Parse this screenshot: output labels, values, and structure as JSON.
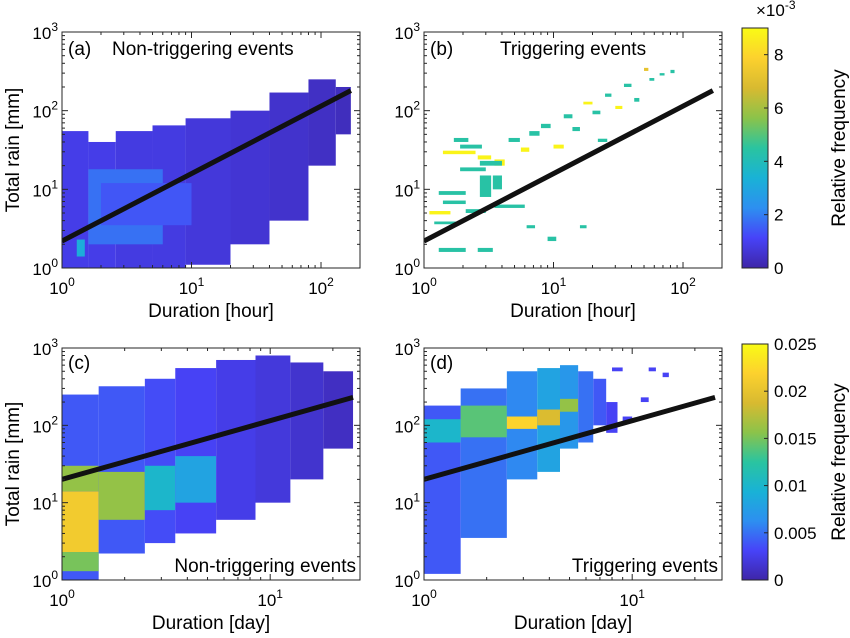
{
  "chart_data": [
    {
      "type": "heatmap",
      "panel_label": "(a)",
      "title": "Non-triggering events",
      "xlabel": "Duration [hour]",
      "ylabel": "Total rain [mm]",
      "xscale": "log",
      "yscale": "log",
      "xlim": [
        1,
        200
      ],
      "ylim": [
        1,
        1000
      ],
      "xticks": [
        {
          "label": "10",
          "exp": "0"
        },
        {
          "label": "10",
          "exp": "1"
        },
        {
          "label": "10",
          "exp": "2"
        }
      ],
      "yticks": [
        {
          "label": "10",
          "exp": "0"
        },
        {
          "label": "10",
          "exp": "1"
        },
        {
          "label": "10",
          "exp": "2"
        },
        {
          "label": "10",
          "exp": "3"
        }
      ],
      "colorbar": "top",
      "fit_line": {
        "x": [
          1,
          170
        ],
        "y": [
          2.2,
          180
        ]
      },
      "cells": [
        {
          "x": [
            1,
            1.6
          ],
          "y": [
            1,
            55
          ],
          "v": 0.0009
        },
        {
          "x": [
            1.3,
            1.5
          ],
          "y": [
            1.4,
            2.3
          ],
          "v": 0.0032
        },
        {
          "x": [
            1.6,
            2.6
          ],
          "y": [
            1,
            40
          ],
          "v": 0.0009
        },
        {
          "x": [
            2.6,
            5
          ],
          "y": [
            1,
            55
          ],
          "v": 0.0008
        },
        {
          "x": [
            5,
            9
          ],
          "y": [
            1,
            65
          ],
          "v": 0.0008
        },
        {
          "x": [
            9,
            20
          ],
          "y": [
            1.1,
            80
          ],
          "v": 0.0007
        },
        {
          "x": [
            20,
            40
          ],
          "y": [
            2,
            100
          ],
          "v": 0.0006
        },
        {
          "x": [
            40,
            80
          ],
          "y": [
            4,
            170
          ],
          "v": 0.0005
        },
        {
          "x": [
            80,
            130
          ],
          "y": [
            20,
            250
          ],
          "v": 0.0004
        },
        {
          "x": [
            130,
            170
          ],
          "y": [
            50,
            200
          ],
          "v": 0.0003
        },
        {
          "x": [
            1.6,
            6
          ],
          "y": [
            2,
            18
          ],
          "v": 0.0018
        },
        {
          "x": [
            2,
            10
          ],
          "y": [
            3.5,
            12
          ],
          "v": 0.0014
        }
      ]
    },
    {
      "type": "heatmap",
      "panel_label": "(b)",
      "title": "Triggering events",
      "xlabel": "Duration [hour]",
      "ylabel": "",
      "xscale": "log",
      "yscale": "log",
      "xlim": [
        1,
        200
      ],
      "ylim": [
        1,
        1000
      ],
      "xticks": [
        {
          "label": "10",
          "exp": "0"
        },
        {
          "label": "10",
          "exp": "1"
        },
        {
          "label": "10",
          "exp": "2"
        }
      ],
      "yticks": [
        {
          "label": "10",
          "exp": "0"
        },
        {
          "label": "10",
          "exp": "1"
        },
        {
          "label": "10",
          "exp": "2"
        },
        {
          "label": "10",
          "exp": "3"
        }
      ],
      "fit_line": {
        "x": [
          1,
          170
        ],
        "y": [
          2.2,
          180
        ]
      },
      "cells": [
        {
          "x": [
            1.7,
            2.2
          ],
          "y": [
            40,
            45
          ],
          "v": 0.0044
        },
        {
          "x": [
            1.9,
            2.8
          ],
          "y": [
            33,
            37
          ],
          "v": 0.0044
        },
        {
          "x": [
            1.4,
            2.5
          ],
          "y": [
            28,
            31
          ],
          "v": 0.0088
        },
        {
          "x": [
            2.6,
            3.3
          ],
          "y": [
            24,
            27
          ],
          "v": 0.0088
        },
        {
          "x": [
            3.5,
            4.2
          ],
          "y": [
            20,
            24
          ],
          "v": 0.0088
        },
        {
          "x": [
            2.7,
            4.0
          ],
          "y": [
            20,
            23
          ],
          "v": 0.0044
        },
        {
          "x": [
            1.9,
            3.0
          ],
          "y": [
            17,
            19
          ],
          "v": 0.0044
        },
        {
          "x": [
            2.7,
            3.3
          ],
          "y": [
            8,
            15
          ],
          "v": 0.0044
        },
        {
          "x": [
            3.4,
            4.0
          ],
          "y": [
            10,
            15
          ],
          "v": 0.0044
        },
        {
          "x": [
            1.3,
            2.1
          ],
          "y": [
            8.5,
            9.5
          ],
          "v": 0.0044
        },
        {
          "x": [
            1.1,
            1.6
          ],
          "y": [
            4.8,
            5.3
          ],
          "v": 0.0088
        },
        {
          "x": [
            1.4,
            2.1
          ],
          "y": [
            6.5,
            7.2
          ],
          "v": 0.0044
        },
        {
          "x": [
            2.1,
            3.0
          ],
          "y": [
            5,
            5.6
          ],
          "v": 0.0044
        },
        {
          "x": [
            3.5,
            6.0
          ],
          "y": [
            5.8,
            6.4
          ],
          "v": 0.0044
        },
        {
          "x": [
            1.2,
            1.9
          ],
          "y": [
            3.6,
            3.9
          ],
          "v": 0.0044
        },
        {
          "x": [
            1.3,
            2.1
          ],
          "y": [
            1.6,
            1.8
          ],
          "v": 0.0044
        },
        {
          "x": [
            2.6,
            3.4
          ],
          "y": [
            1.6,
            1.8
          ],
          "v": 0.0044
        },
        {
          "x": [
            4.5,
            5.5
          ],
          "y": [
            40,
            45
          ],
          "v": 0.0044
        },
        {
          "x": [
            5.6,
            6.5
          ],
          "y": [
            30,
            34
          ],
          "v": 0.0088
        },
        {
          "x": [
            6.5,
            7.8
          ],
          "y": [
            48,
            55
          ],
          "v": 0.0044
        },
        {
          "x": [
            8,
            9.5
          ],
          "y": [
            60,
            68
          ],
          "v": 0.0044
        },
        {
          "x": [
            10,
            12
          ],
          "y": [
            33,
            37
          ],
          "v": 0.0088
        },
        {
          "x": [
            12,
            14
          ],
          "y": [
            80,
            90
          ],
          "v": 0.0044
        },
        {
          "x": [
            14,
            16
          ],
          "y": [
            55,
            62
          ],
          "v": 0.0044
        },
        {
          "x": [
            17,
            20
          ],
          "y": [
            120,
            130
          ],
          "v": 0.0088
        },
        {
          "x": [
            20,
            23
          ],
          "y": [
            90,
            100
          ],
          "v": 0.0044
        },
        {
          "x": [
            25,
            28
          ],
          "y": [
            150,
            165
          ],
          "v": 0.0044
        },
        {
          "x": [
            30,
            34
          ],
          "y": [
            105,
            115
          ],
          "v": 0.0088
        },
        {
          "x": [
            35,
            40
          ],
          "y": [
            200,
            220
          ],
          "v": 0.0044
        },
        {
          "x": [
            42,
            46
          ],
          "y": [
            130,
            145
          ],
          "v": 0.0044
        },
        {
          "x": [
            50,
            54
          ],
          "y": [
            320,
            350
          ],
          "v": 0.0072
        },
        {
          "x": [
            55,
            60
          ],
          "y": [
            240,
            260
          ],
          "v": 0.0044
        },
        {
          "x": [
            66,
            72
          ],
          "y": [
            280,
            300
          ],
          "v": 0.0044
        },
        {
          "x": [
            80,
            86
          ],
          "y": [
            300,
            330
          ],
          "v": 0.0044
        },
        {
          "x": [
            22,
            26
          ],
          "y": [
            40,
            44
          ],
          "v": 0.0044
        },
        {
          "x": [
            9,
            10.5
          ],
          "y": [
            2.2,
            2.5
          ],
          "v": 0.0044
        },
        {
          "x": [
            6.2,
            7.2
          ],
          "y": [
            3.2,
            3.5
          ],
          "v": 0.0044
        },
        {
          "x": [
            16,
            18
          ],
          "y": [
            3.2,
            3.5
          ],
          "v": 0.0044
        }
      ]
    },
    {
      "type": "heatmap",
      "panel_label": "(c)",
      "title": "Non-triggering events",
      "xlabel": "Duration [day]",
      "ylabel": "Total rain [mm]",
      "xscale": "log",
      "yscale": "log",
      "xlim": [
        1,
        27
      ],
      "ylim": [
        1,
        1000
      ],
      "xticks": [
        {
          "label": "10",
          "exp": "0"
        },
        {
          "label": "10",
          "exp": "1"
        }
      ],
      "yticks": [
        {
          "label": "10",
          "exp": "0"
        },
        {
          "label": "10",
          "exp": "1"
        },
        {
          "label": "10",
          "exp": "2"
        },
        {
          "label": "10",
          "exp": "3"
        }
      ],
      "colorbar": "bottom",
      "fit_line": {
        "x": [
          1,
          25
        ],
        "y": [
          20,
          230
        ]
      },
      "cells": [
        {
          "x": [
            1,
            1.5
          ],
          "y": [
            1,
            250
          ],
          "v": 0.004
        },
        {
          "x": [
            1,
            1.5
          ],
          "y": [
            1.3,
            2.3
          ],
          "v": 0.015
        },
        {
          "x": [
            1,
            1.5
          ],
          "y": [
            2.3,
            14
          ],
          "v": 0.021
        },
        {
          "x": [
            1,
            1.5
          ],
          "y": [
            14,
            30
          ],
          "v": 0.016
        },
        {
          "x": [
            1.5,
            2.5
          ],
          "y": [
            2.2,
            320
          ],
          "v": 0.004
        },
        {
          "x": [
            1.5,
            2.5
          ],
          "y": [
            6,
            25
          ],
          "v": 0.016
        },
        {
          "x": [
            2.5,
            3.5
          ],
          "y": [
            3,
            400
          ],
          "v": 0.0035
        },
        {
          "x": [
            2.5,
            3.5
          ],
          "y": [
            8,
            30
          ],
          "v": 0.01
        },
        {
          "x": [
            3.5,
            5.5
          ],
          "y": [
            4,
            550
          ],
          "v": 0.003
        },
        {
          "x": [
            3.5,
            5.5
          ],
          "y": [
            10,
            40
          ],
          "v": 0.008
        },
        {
          "x": [
            5.5,
            8.5
          ],
          "y": [
            6,
            700
          ],
          "v": 0.0025
        },
        {
          "x": [
            8.5,
            12.5
          ],
          "y": [
            10,
            800
          ],
          "v": 0.002
        },
        {
          "x": [
            12.5,
            18
          ],
          "y": [
            20,
            650
          ],
          "v": 0.0015
        },
        {
          "x": [
            18,
            25
          ],
          "y": [
            50,
            500
          ],
          "v": 0.001
        }
      ]
    },
    {
      "type": "heatmap",
      "panel_label": "(d)",
      "title": "Triggering events",
      "xlabel": "Duration [day]",
      "ylabel": "",
      "xscale": "log",
      "yscale": "log",
      "xlim": [
        1,
        27
      ],
      "ylim": [
        1,
        1000
      ],
      "xticks": [
        {
          "label": "10",
          "exp": "0"
        },
        {
          "label": "10",
          "exp": "1"
        }
      ],
      "yticks": [
        {
          "label": "10",
          "exp": "0"
        },
        {
          "label": "10",
          "exp": "1"
        },
        {
          "label": "10",
          "exp": "2"
        },
        {
          "label": "10",
          "exp": "3"
        }
      ],
      "fit_line": {
        "x": [
          1,
          25
        ],
        "y": [
          20,
          230
        ]
      },
      "cells": [
        {
          "x": [
            1,
            1.5
          ],
          "y": [
            1.2,
            180
          ],
          "v": 0.004
        },
        {
          "x": [
            1,
            1.5
          ],
          "y": [
            60,
            120
          ],
          "v": 0.01
        },
        {
          "x": [
            1.5,
            2.5
          ],
          "y": [
            3.5,
            300
          ],
          "v": 0.005
        },
        {
          "x": [
            1.5,
            2.5
          ],
          "y": [
            70,
            180
          ],
          "v": 0.014
        },
        {
          "x": [
            2.5,
            3.5
          ],
          "y": [
            20,
            500
          ],
          "v": 0.006
        },
        {
          "x": [
            2.5,
            3.5
          ],
          "y": [
            90,
            130
          ],
          "v": 0.022
        },
        {
          "x": [
            3.5,
            4.5
          ],
          "y": [
            25,
            550
          ],
          "v": 0.008
        },
        {
          "x": [
            3.5,
            4.5
          ],
          "y": [
            100,
            160
          ],
          "v": 0.019
        },
        {
          "x": [
            4.5,
            5.5
          ],
          "y": [
            50,
            600
          ],
          "v": 0.007
        },
        {
          "x": [
            4.5,
            5.5
          ],
          "y": [
            150,
            220
          ],
          "v": 0.016
        },
        {
          "x": [
            5.5,
            6.5
          ],
          "y": [
            60,
            500
          ],
          "v": 0.005
        },
        {
          "x": [
            6.5,
            7.5
          ],
          "y": [
            100,
            400
          ],
          "v": 0.004
        },
        {
          "x": [
            7.5,
            8.5
          ],
          "y": [
            80,
            200
          ],
          "v": 0.003
        },
        {
          "x": [
            9,
            10
          ],
          "y": [
            110,
            130
          ],
          "v": 0.003
        },
        {
          "x": [
            8,
            9
          ],
          "y": [
            500,
            560
          ],
          "v": 0.003
        },
        {
          "x": [
            12,
            13
          ],
          "y": [
            500,
            560
          ],
          "v": 0.003
        },
        {
          "x": [
            14,
            15
          ],
          "y": [
            420,
            480
          ],
          "v": 0.003
        },
        {
          "x": [
            11,
            12
          ],
          "y": [
            200,
            230
          ],
          "v": 0.003
        }
      ]
    }
  ],
  "colorbars": [
    {
      "position": "top",
      "label": "Relative frequency",
      "min": 0,
      "max": 0.009,
      "scale_text": "×10",
      "scale_exp": "-3",
      "ticks": [
        {
          "value": 0,
          "label": "0"
        },
        {
          "value": 0.002,
          "label": "2"
        },
        {
          "value": 0.004,
          "label": "4"
        },
        {
          "value": 0.006,
          "label": "6"
        },
        {
          "value": 0.008,
          "label": "8"
        }
      ]
    },
    {
      "position": "bottom",
      "label": "Relative frequency",
      "min": 0,
      "max": 0.025,
      "ticks": [
        {
          "value": 0,
          "label": "0"
        },
        {
          "value": 0.005,
          "label": "0.005"
        },
        {
          "value": 0.01,
          "label": "0.01"
        },
        {
          "value": 0.015,
          "label": "0.015"
        },
        {
          "value": 0.02,
          "label": "0.02"
        },
        {
          "value": 0.025,
          "label": "0.025"
        }
      ]
    }
  ],
  "colormap": [
    "#3e26a8",
    "#4743f8",
    "#2d8ff0",
    "#19b2d6",
    "#2ac4a0",
    "#8bc34a",
    "#d8ba30",
    "#fcd12e",
    "#f9fb15"
  ]
}
